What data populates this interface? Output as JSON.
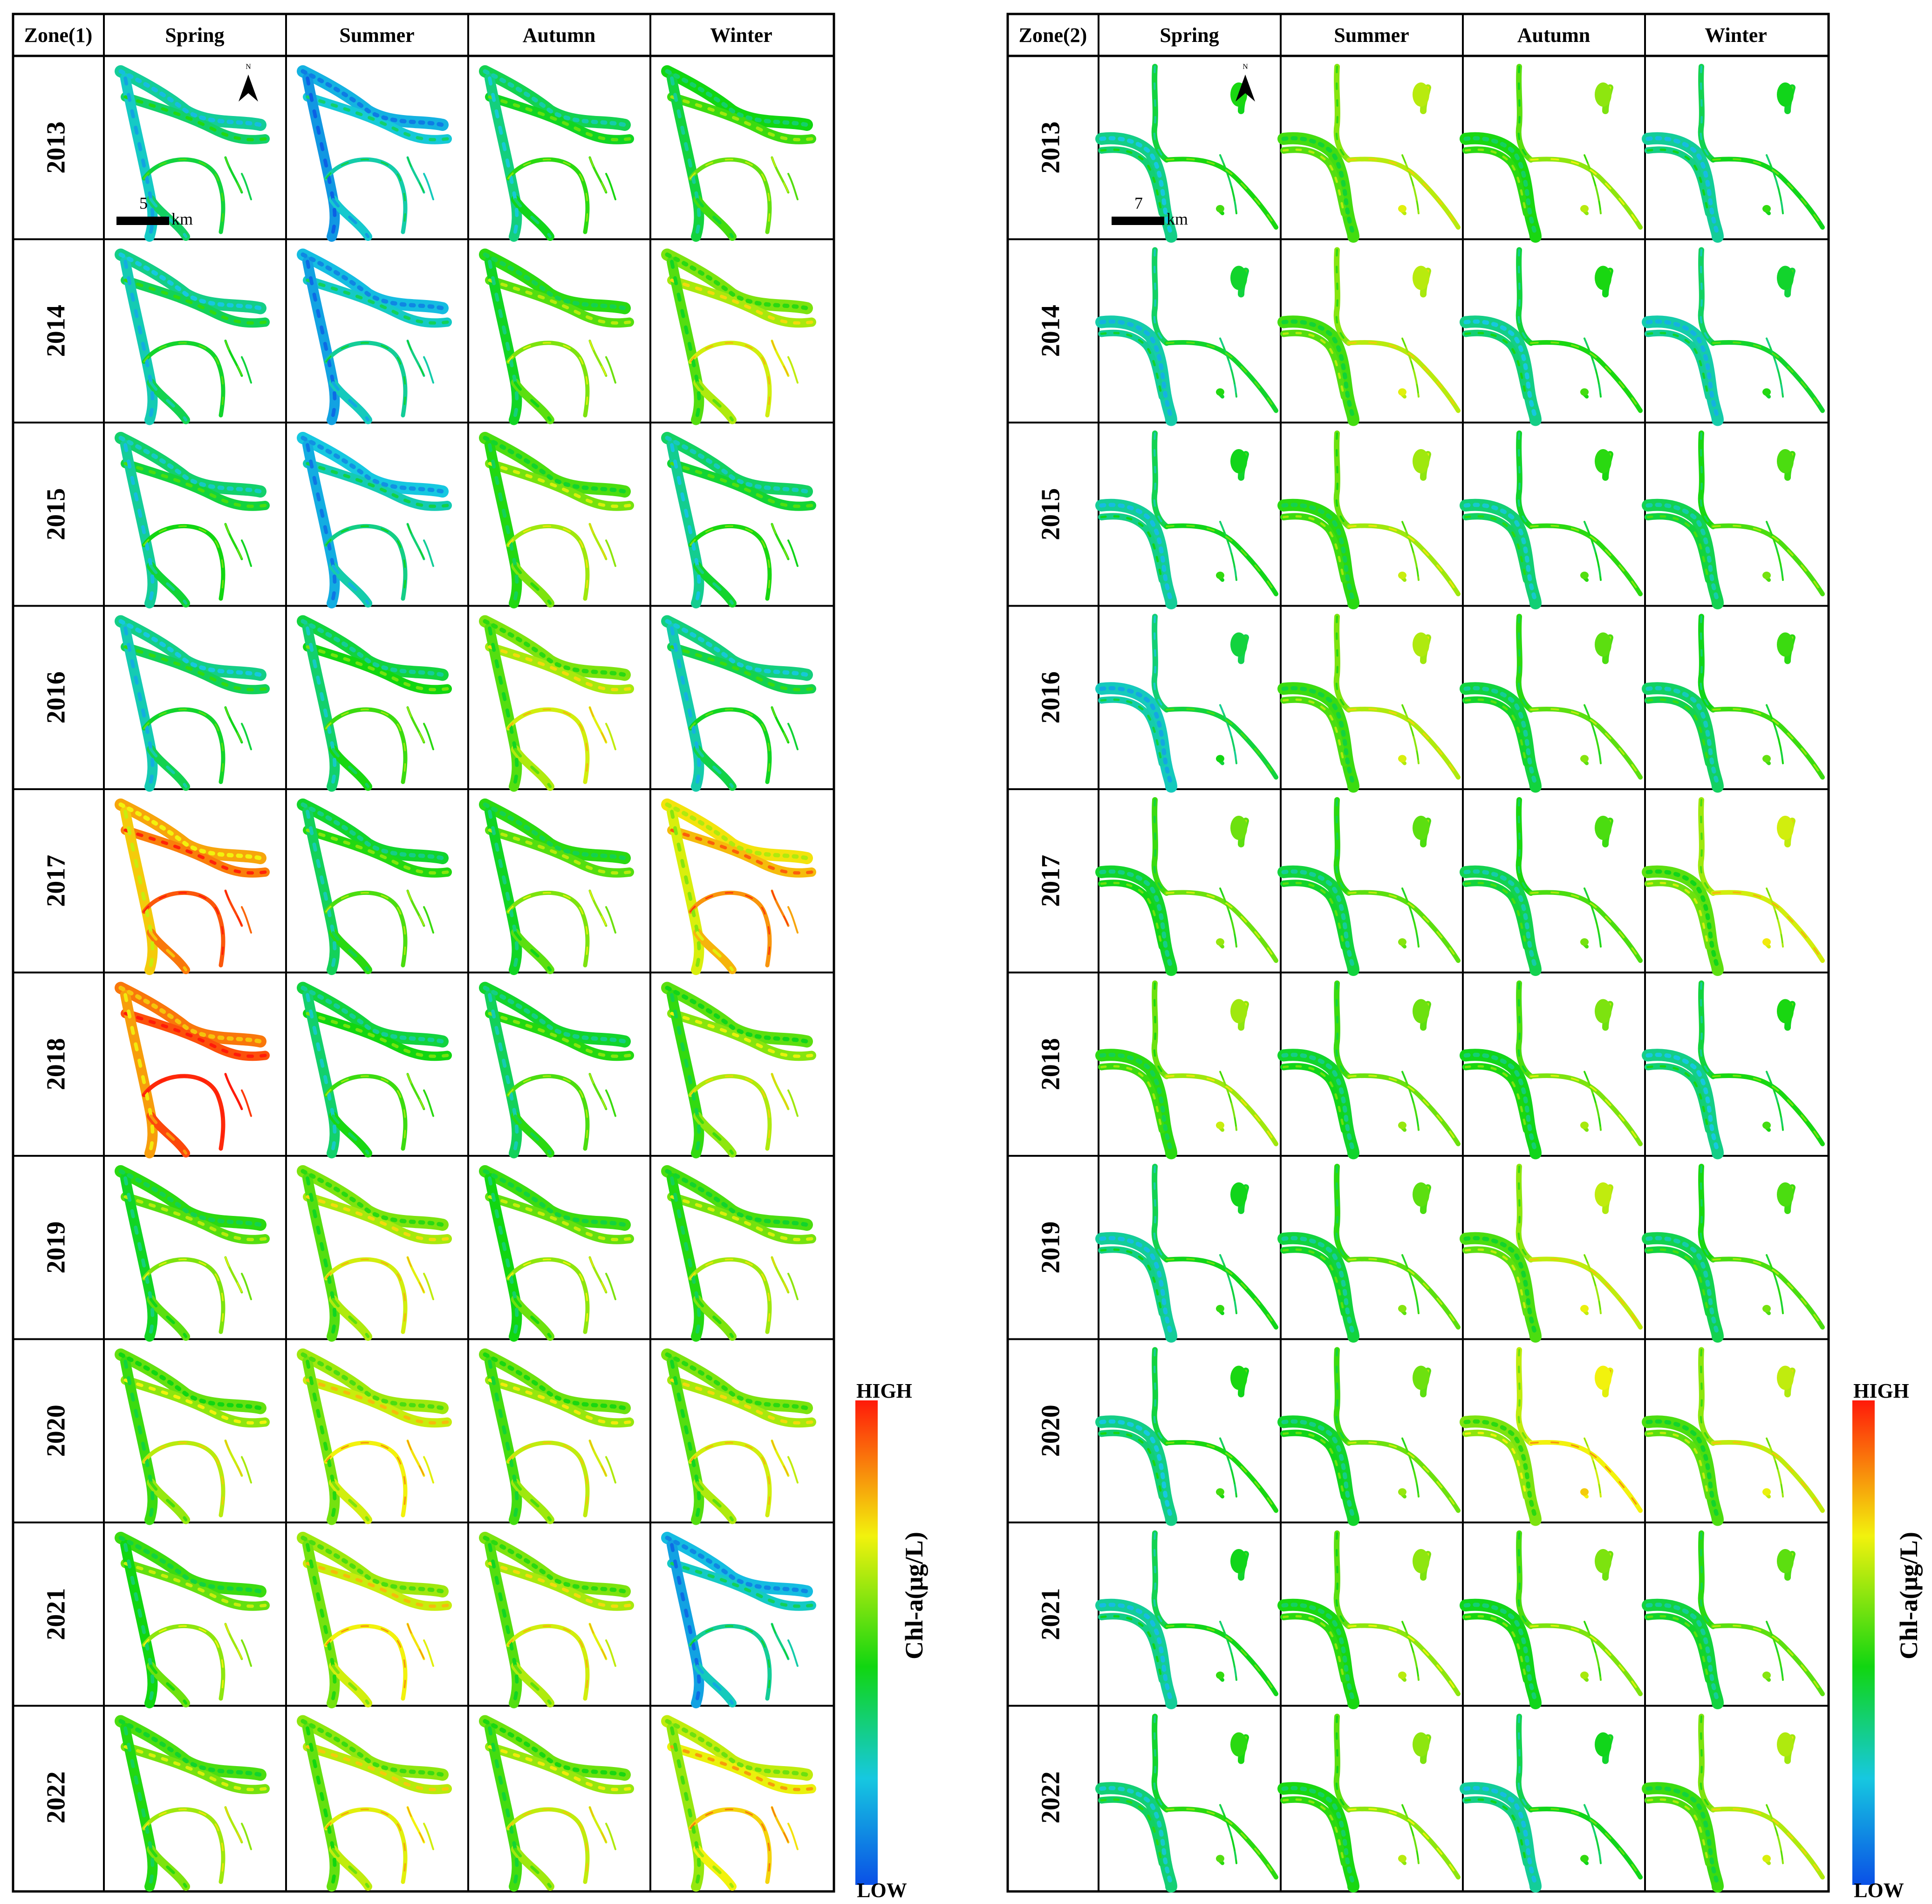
{
  "figure": {
    "zones": [
      {
        "label": "Zone(1)",
        "seasons": [
          "Spring",
          "Summer",
          "Autumn",
          "Winter"
        ],
        "years": [
          "2013",
          "2014",
          "2015",
          "2016",
          "2017",
          "2018",
          "2019",
          "2020",
          "2021",
          "2022"
        ],
        "scale_value": "5",
        "scale_unit": "km",
        "north_label": "N",
        "map_style": "delta",
        "levels": [
          [
            0.3,
            0.18,
            0.38,
            0.45
          ],
          [
            0.32,
            0.2,
            0.48,
            0.58
          ],
          [
            0.35,
            0.22,
            0.52,
            0.36
          ],
          [
            0.32,
            0.4,
            0.58,
            0.33
          ],
          [
            0.82,
            0.42,
            0.48,
            0.74
          ],
          [
            0.88,
            0.4,
            0.42,
            0.54
          ],
          [
            0.48,
            0.58,
            0.5,
            0.52
          ],
          [
            0.55,
            0.62,
            0.56,
            0.58
          ],
          [
            0.5,
            0.62,
            0.58,
            0.2
          ],
          [
            0.52,
            0.6,
            0.56,
            0.66
          ]
        ]
      },
      {
        "label": "Zone(2)",
        "seasons": [
          "Spring",
          "Summer",
          "Autumn",
          "Winter"
        ],
        "years": [
          "2013",
          "2014",
          "2015",
          "2016",
          "2017",
          "2018",
          "2019",
          "2020",
          "2021",
          "2022"
        ],
        "scale_value": "7",
        "scale_unit": "km",
        "north_label": "N",
        "map_style": "bend",
        "levels": [
          [
            0.36,
            0.55,
            0.5,
            0.34
          ],
          [
            0.32,
            0.55,
            0.36,
            0.32
          ],
          [
            0.34,
            0.52,
            0.38,
            0.42
          ],
          [
            0.3,
            0.54,
            0.44,
            0.4
          ],
          [
            0.46,
            0.44,
            0.42,
            0.58
          ],
          [
            0.52,
            0.46,
            0.48,
            0.36
          ],
          [
            0.34,
            0.44,
            0.56,
            0.42
          ],
          [
            0.36,
            0.46,
            0.62,
            0.56
          ],
          [
            0.34,
            0.5,
            0.48,
            0.44
          ],
          [
            0.38,
            0.5,
            0.34,
            0.54
          ]
        ]
      }
    ],
    "legend": {
      "high_label": "HIGH",
      "low_label": "LOW",
      "title": "Chl-a(μg/L)",
      "colors": [
        "#0a50e6",
        "#16c8e0",
        "#11d611",
        "#f2f20d",
        "#ff1a0a"
      ]
    }
  }
}
